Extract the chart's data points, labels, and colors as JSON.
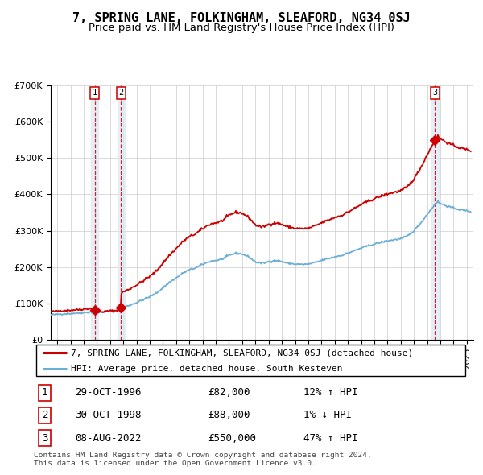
{
  "title": "7, SPRING LANE, FOLKINGHAM, SLEAFORD, NG34 0SJ",
  "subtitle": "Price paid vs. HM Land Registry's House Price Index (HPI)",
  "ylim": [
    0,
    700000
  ],
  "xlim_start": 1993.5,
  "xlim_end": 2025.5,
  "yticks": [
    0,
    100000,
    200000,
    300000,
    400000,
    500000,
    600000,
    700000
  ],
  "ytick_labels": [
    "£0",
    "£100K",
    "£200K",
    "£300K",
    "£400K",
    "£500K",
    "£600K",
    "£700K"
  ],
  "sale_dates": [
    1996.83,
    1998.83,
    2022.6
  ],
  "sale_prices": [
    82000,
    88000,
    550000
  ],
  "sale_labels": [
    "1",
    "2",
    "3"
  ],
  "hpi_color": "#6baed6",
  "price_color": "#cc0000",
  "sale_dot_color": "#cc0000",
  "dashed_line_color": "#cc0000",
  "shade_color": "#dce9f5",
  "grid_color": "#cccccc",
  "legend_label_red": "7, SPRING LANE, FOLKINGHAM, SLEAFORD, NG34 0SJ (detached house)",
  "legend_label_blue": "HPI: Average price, detached house, South Kesteven",
  "table_rows": [
    {
      "label": "1",
      "date": "29-OCT-1996",
      "price": "£82,000",
      "change": "12% ↑ HPI"
    },
    {
      "label": "2",
      "date": "30-OCT-1998",
      "price": "£88,000",
      "change": "1% ↓ HPI"
    },
    {
      "label": "3",
      "date": "08-AUG-2022",
      "price": "£550,000",
      "change": "47% ↑ HPI"
    }
  ],
  "footnote": "Contains HM Land Registry data © Crown copyright and database right 2024.\nThis data is licensed under the Open Government Licence v3.0.",
  "title_fontsize": 11,
  "subtitle_fontsize": 9.5,
  "tick_fontsize": 8,
  "legend_fontsize": 8,
  "table_fontsize": 9
}
